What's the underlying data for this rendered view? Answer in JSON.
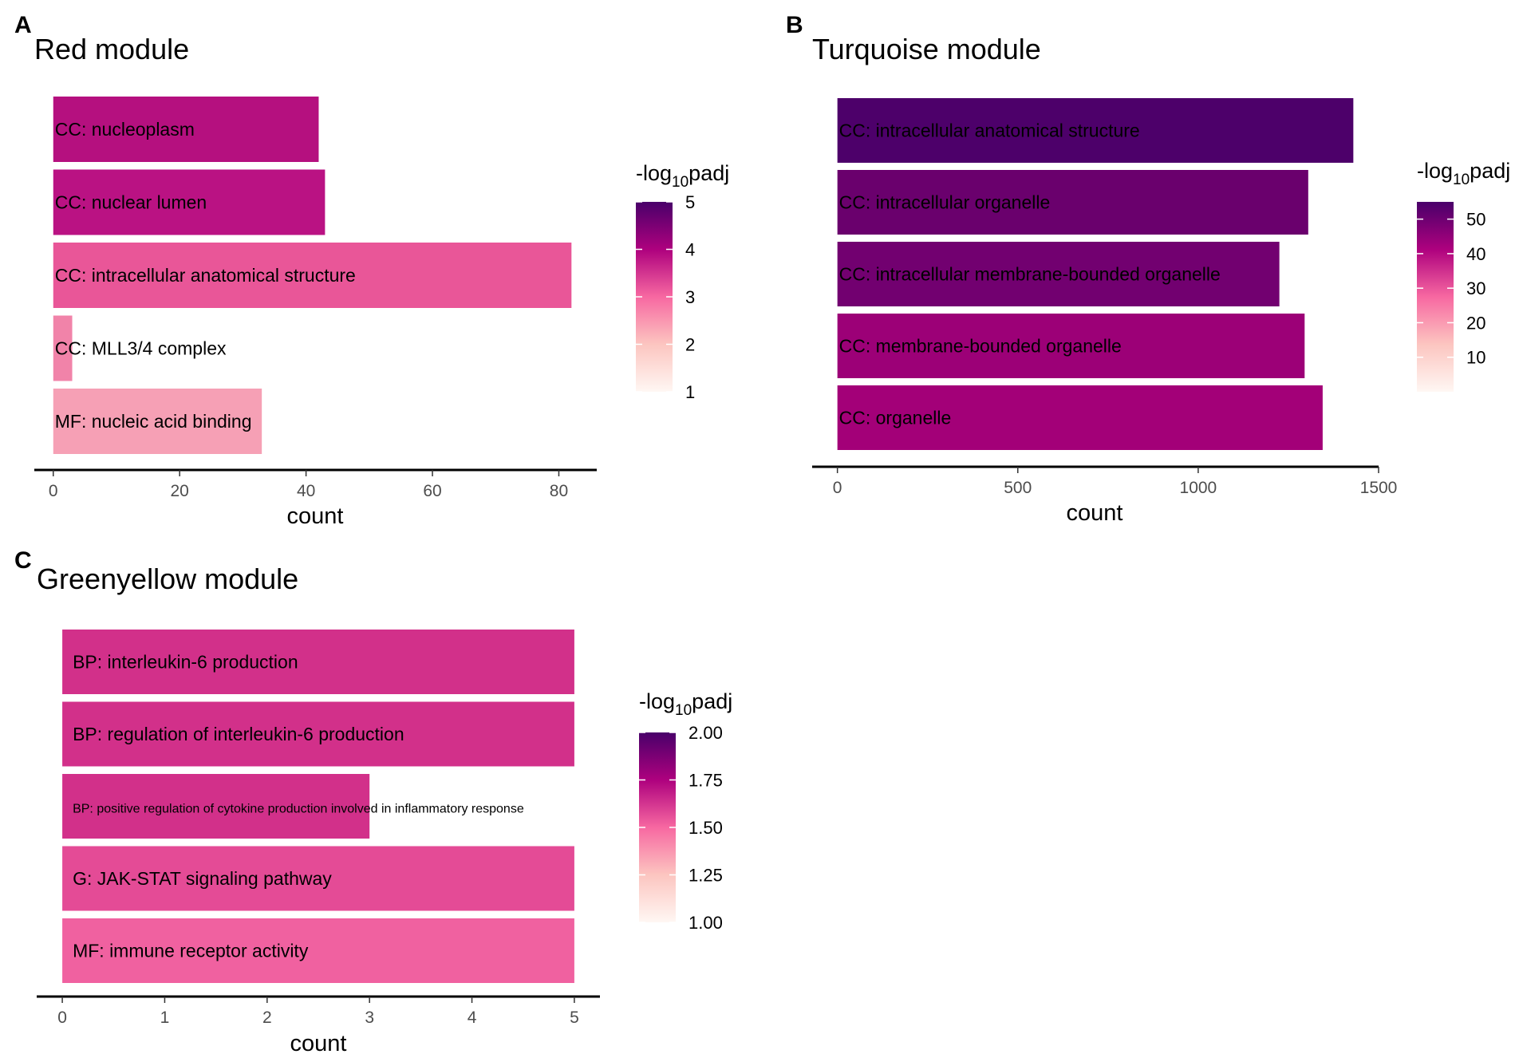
{
  "chart_data": [
    {
      "panel": "A",
      "type": "bar",
      "orientation": "horizontal",
      "title": "Red module",
      "xlabel": "count",
      "xlim": [
        -3,
        86
      ],
      "xticks": [
        0,
        20,
        40,
        60,
        80
      ],
      "categories": [
        "CC: nucleoplasm",
        "CC: nuclear lumen",
        "CC: intracellular anatomical structure",
        "CC: MLL3/4 complex",
        "MF: nucleic acid binding"
      ],
      "values": [
        42,
        43,
        82,
        3,
        33
      ],
      "color_values": [
        4.0,
        3.9,
        3.0,
        2.6,
        2.4
      ],
      "colors": [
        "#b5107f",
        "#ba1283",
        "#e95698",
        "#f183a9",
        "#f6a0b5"
      ],
      "legend": {
        "title_prefix": "-log",
        "title_sub": "10",
        "title_suffix": "padj",
        "range": [
          1,
          5
        ],
        "ticks": [
          "1",
          "2",
          "3",
          "4",
          "5"
        ],
        "stops": [
          "#fff7f3",
          "#fcc5c0",
          "#f768a1",
          "#ae017e",
          "#49006a"
        ]
      }
    },
    {
      "panel": "B",
      "type": "bar",
      "orientation": "horizontal",
      "title": "Turquoise module",
      "xlabel": "count",
      "xlim": [
        -70,
        1500
      ],
      "xticks": [
        0,
        500,
        1000,
        1500
      ],
      "categories": [
        "CC: intracellular anatomical structure",
        "CC: intracellular organelle",
        "CC: intracellular membrane-bounded organelle",
        "CC: membrane-bounded organelle",
        "CC: organelle"
      ],
      "values": [
        1430,
        1305,
        1225,
        1295,
        1345
      ],
      "color_values": [
        55,
        48,
        47,
        42,
        41
      ],
      "colors": [
        "#4d006a",
        "#6a006d",
        "#720070",
        "#9c0077",
        "#a30078"
      ],
      "legend": {
        "title_prefix": "-log",
        "title_sub": "10",
        "title_suffix": "padj",
        "range": [
          0,
          55
        ],
        "ticks": [
          "10",
          "20",
          "30",
          "40",
          "50"
        ],
        "stops": [
          "#fff7f3",
          "#fcc5c0",
          "#f768a1",
          "#ae017e",
          "#49006a"
        ]
      }
    },
    {
      "panel": "C",
      "type": "bar",
      "orientation": "horizontal",
      "title": "Greenyellow module",
      "xlabel": "count",
      "xlim": [
        -0.25,
        5.25
      ],
      "xticks": [
        0,
        1,
        2,
        3,
        4,
        5
      ],
      "categories": [
        "BP: interleukin-6 production",
        "BP: regulation of interleukin-6 production",
        "BP: positive regulation of cytokine production involved in inflammatory response",
        "G: JAK-STAT signaling pathway",
        "MF: immune receptor activity"
      ],
      "values": [
        5,
        5,
        3,
        5,
        5
      ],
      "color_values": [
        1.6,
        1.6,
        1.6,
        1.5,
        1.4
      ],
      "colors": [
        "#d2308a",
        "#d2308a",
        "#d2308a",
        "#e44b96",
        "#f061a0"
      ],
      "legend": {
        "title_prefix": "-log",
        "title_sub": "10",
        "title_suffix": "padj",
        "range": [
          1.0,
          2.0
        ],
        "ticks": [
          "1.00",
          "1.25",
          "1.50",
          "1.75",
          "2.00"
        ],
        "stops": [
          "#fff7f3",
          "#fcc5c0",
          "#f768a1",
          "#ae017e",
          "#49006a"
        ]
      }
    }
  ]
}
